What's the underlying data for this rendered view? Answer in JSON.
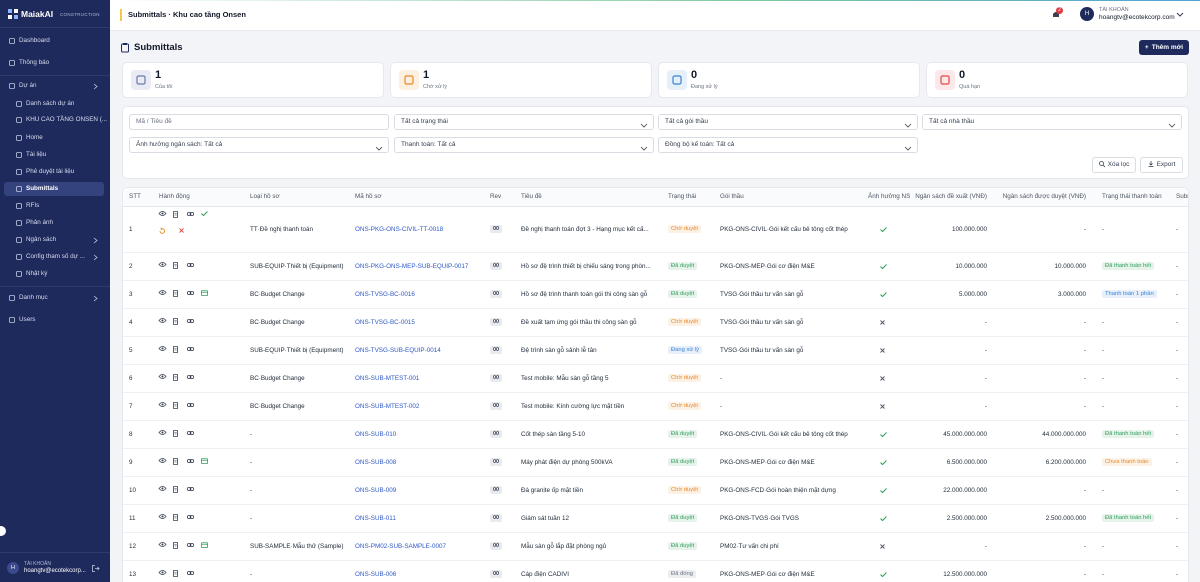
{
  "sidebar": {
    "brand": "MaiakAI",
    "brand_sub": "CONSTRUCTION",
    "menu": [
      "Dashboard",
      "Thông báo",
      "Dự án",
      "Danh sách dự án",
      "KHU CAO TẦNG ONSEN (...",
      "Home",
      "Tài liệu",
      "Phê duyệt tài liệu",
      "Submittals",
      "RFIs",
      "Phản ánh",
      "Ngân sách",
      "Config tham số dự ...",
      "Nhật ký",
      "Danh mục",
      "Users"
    ],
    "account_avatar": "H",
    "account_label": "TÀI KHOẢN",
    "account_email": "hoangtv@ecotekcorp..."
  },
  "topbar": {
    "breadcrumb": "Submittals · Khu cao tầng Onsen",
    "notification_count": "2",
    "avatar": "H",
    "account_label": "TÀI KHOẢN",
    "account_email": "hoangtv@ecotekcorp.com"
  },
  "page": {
    "title": "Submittals",
    "add_button": "Thêm mới"
  },
  "stats": [
    {
      "value": "1",
      "label": "Của tôi",
      "color": "#6b7aa8",
      "bg": "#e9ecf5"
    },
    {
      "value": "1",
      "label": "Chờ xử lý",
      "color": "#e8892b",
      "bg": "#fdf0e1"
    },
    {
      "value": "0",
      "label": "Đang xử lý",
      "color": "#3b82d6",
      "bg": "#e6f0fb"
    },
    {
      "value": "0",
      "label": "Quá hạn",
      "color": "#e04848",
      "bg": "#fce8e8"
    }
  ],
  "filters": {
    "search": "Mã / Tiêu đề",
    "selects": [
      "Tất cả trạng thái",
      "Tất cả gói thầu",
      "Tất cả nhà thầu",
      "Ảnh hưởng ngân sách: Tất cả",
      "Thanh toán: Tất cả",
      "Đồng bộ kế toán: Tất cả"
    ],
    "clear": "Xóa lọc",
    "export": "Export"
  },
  "table": {
    "columns": [
      "STT",
      "Hành động",
      "Loại hồ sơ",
      "Mã hồ sơ",
      "Rev",
      "Tiêu đề",
      "Trạng thái",
      "Gói thầu",
      "Ảnh hưởng NS",
      "Ngân sách đề xuất (VNĐ)",
      "Ngân sách được duyệt (VNĐ)",
      "Trạng thái thanh toán",
      "Subm"
    ],
    "rows": [
      {
        "stt": "1",
        "type": "TT·Đề nghị thanh toán",
        "code": "ONS-PKG-ONS-CIVIL-TT-0018",
        "rev": "00",
        "title": "Đề nghị thanh toán đợt 3 - Hạng mục kết cấ...",
        "status": "Chờ duyệt",
        "status_color": "#e8892b",
        "package": "PKG-ONS-CIVIL·Gói kết cấu bê tông cốt thép",
        "budget_impact": true,
        "proposed": "100.000.000",
        "approved": "-",
        "payment": "-",
        "payment_color": null,
        "subm": "-"
      },
      {
        "stt": "2",
        "type": "SUB-EQUIP·Thiết bị (Equipment)",
        "code": "ONS-PKG-ONS-MEP-SUB-EQUIP-0017",
        "rev": "00",
        "title": "Hồ sơ đệ trình thiết bị chiếu sáng trong phòn...",
        "status": "Đã duyệt",
        "status_color": "#2e9e5b",
        "package": "PKG-ONS-MEP·Gói cơ điện M&E",
        "budget_impact": true,
        "proposed": "10.000.000",
        "approved": "10.000.000",
        "payment": "Đã thanh toán hết",
        "payment_color": "#2e9e5b",
        "subm": "-"
      },
      {
        "stt": "3",
        "type": "BC·Budget Change",
        "code": "ONS-TVSG-BC-0016",
        "rev": "00",
        "title": "Hồ sơ đệ trình thanh toán gói thi công sàn gỗ",
        "status": "Đã duyệt",
        "status_color": "#2e9e5b",
        "package": "TVSG·Gói thầu tư vấn sàn gỗ",
        "budget_impact": true,
        "proposed": "5.000.000",
        "approved": "3.000.000",
        "payment": "Thanh toán 1 phần",
        "payment_color": "#3b82d6",
        "subm": "-"
      },
      {
        "stt": "4",
        "type": "BC·Budget Change",
        "code": "ONS-TVSG-BC-0015",
        "rev": "00",
        "title": "Đề xuất tạm ứng gói thầu thi công sàn gỗ",
        "status": "Chờ duyệt",
        "status_color": "#e8892b",
        "package": "TVSG·Gói thầu tư vấn sàn gỗ",
        "budget_impact": false,
        "proposed": "-",
        "approved": "-",
        "payment": "-",
        "payment_color": null,
        "subm": "-"
      },
      {
        "stt": "5",
        "type": "SUB-EQUIP·Thiết bị (Equipment)",
        "code": "ONS-TVSG-SUB-EQUIP-0014",
        "rev": "00",
        "title": "Đệ trình sàn gỗ sảnh lễ tân",
        "status": "Đang xử lý",
        "status_color": "#3b82d6",
        "package": "TVSG·Gói thầu tư vấn sàn gỗ",
        "budget_impact": false,
        "proposed": "-",
        "approved": "-",
        "payment": "-",
        "payment_color": null,
        "subm": "-"
      },
      {
        "stt": "6",
        "type": "BC·Budget Change",
        "code": "ONS-SUB-MTEST-001",
        "rev": "00",
        "title": "Test mobile: Mẫu sàn gỗ tầng 5",
        "status": "Chờ duyệt",
        "status_color": "#e8892b",
        "package": "-",
        "budget_impact": false,
        "proposed": "-",
        "approved": "-",
        "payment": "-",
        "payment_color": null,
        "subm": "-"
      },
      {
        "stt": "7",
        "type": "BC·Budget Change",
        "code": "ONS-SUB-MTEST-002",
        "rev": "00",
        "title": "Test mobile: Kính cường lực mặt tiền",
        "status": "Chờ duyệt",
        "status_color": "#e8892b",
        "package": "-",
        "budget_impact": false,
        "proposed": "-",
        "approved": "-",
        "payment": "-",
        "payment_color": null,
        "subm": "-"
      },
      {
        "stt": "8",
        "type": "-",
        "code": "ONS-SUB-010",
        "rev": "00",
        "title": "Cốt thép sàn tầng 5-10",
        "status": "Đã duyệt",
        "status_color": "#2e9e5b",
        "package": "PKG-ONS-CIVIL·Gói kết cấu bê tông cốt thép",
        "budget_impact": true,
        "proposed": "45.000.000.000",
        "approved": "44.000.000.000",
        "payment": "Đã thanh toán hết",
        "payment_color": "#2e9e5b",
        "subm": "-"
      },
      {
        "stt": "9",
        "type": "-",
        "code": "ONS-SUB-008",
        "rev": "00",
        "title": "Máy phát điện dự phòng 500kVA",
        "status": "Đã duyệt",
        "status_color": "#2e9e5b",
        "package": "PKG-ONS-MEP·Gói cơ điện M&E",
        "budget_impact": true,
        "proposed": "6.500.000.000",
        "approved": "6.200.000.000",
        "payment": "Chưa thanh toán",
        "payment_color": "#e8892b",
        "subm": "-"
      },
      {
        "stt": "10",
        "type": "-",
        "code": "ONS-SUB-009",
        "rev": "00",
        "title": "Đá granite ốp mặt tiền",
        "status": "Chờ duyệt",
        "status_color": "#e8892b",
        "package": "PKG-ONS-FCD·Gói hoàn thiện mặt dựng",
        "budget_impact": true,
        "proposed": "22.000.000.000",
        "approved": "-",
        "payment": "-",
        "payment_color": null,
        "subm": "-"
      },
      {
        "stt": "11",
        "type": "-",
        "code": "ONS-SUB-011",
        "rev": "00",
        "title": "Giám sát tuần 12",
        "status": "Đã duyệt",
        "status_color": "#2e9e5b",
        "package": "PKG-ONS-TVGS·Gói TVGS",
        "budget_impact": true,
        "proposed": "2.500.000.000",
        "approved": "2.500.000.000",
        "payment": "Đã thanh toán hết",
        "payment_color": "#2e9e5b",
        "subm": "-"
      },
      {
        "stt": "12",
        "type": "SUB-SAMPLE·Mẫu thử (Sample)",
        "code": "ONS-PM02-SUB-SAMPLE-0007",
        "rev": "00",
        "title": "Mẫu sàn gỗ lắp đặt phòng ngủ",
        "status": "Đã duyệt",
        "status_color": "#2e9e5b",
        "package": "PM02·Tư vấn chi phí",
        "budget_impact": false,
        "proposed": "-",
        "approved": "-",
        "payment": "-",
        "payment_color": null,
        "subm": "-"
      },
      {
        "stt": "13",
        "type": "-",
        "code": "ONS-SUB-006",
        "rev": "00",
        "title": "Cáp điện CADIVI",
        "status": "Đã đóng",
        "status_color": "#6b7280",
        "package": "PKG-ONS-MEP·Gói cơ điện M&E",
        "budget_impact": true,
        "proposed": "12.500.000.000",
        "approved": "-",
        "payment": "-",
        "payment_color": null,
        "subm": "-"
      }
    ]
  }
}
